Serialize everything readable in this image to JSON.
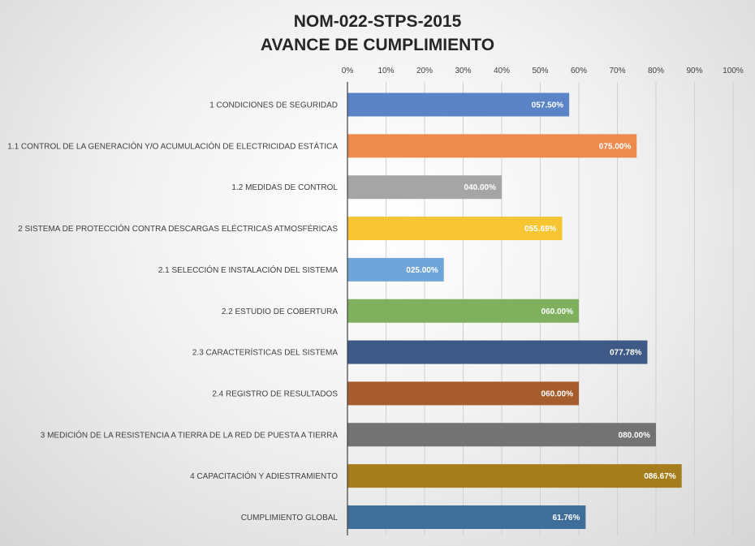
{
  "chart_data": {
    "type": "bar",
    "orientation": "horizontal",
    "title_lines": [
      "NOM-022-STPS-2015",
      "AVANCE DE CUMPLIMIENTO"
    ],
    "xlim": [
      0,
      100
    ],
    "x_ticks": [
      "0%",
      "10%",
      "20%",
      "30%",
      "40%",
      "50%",
      "60%",
      "70%",
      "80%",
      "90%",
      "100%"
    ],
    "x_axis_position": "top",
    "grid": true,
    "categories": [
      "1  CONDICIONES DE SEGURIDAD",
      "1.1 CONTROL DE LA GENERACIÓN Y/O ACUMULACIÓN DE ELECTRICIDAD ESTÁTICA",
      "1.2 MEDIDAS DE CONTROL",
      "2  SISTEMA DE PROTECCIÓN CONTRA DESCARGAS ELÉCTRICAS ATMOSFÉRICAS",
      "2.1 SELECCIÓN E INSTALACIÓN DEL SISTEMA",
      "2.2 ESTUDIO DE COBERTURA",
      "2.3 CARACTERÍSTICAS DEL SISTEMA",
      "2.4 REGISTRO DE RESULTADOS",
      "3  MEDICIÓN DE LA RESISTENCIA A TIERRA DE LA RED DE PUESTA A TIERRA",
      "4  CAPACITACIÓN Y ADIESTRAMIENTO",
      "CUMPLIMIENTO GLOBAL"
    ],
    "values": [
      57.5,
      75.0,
      40.0,
      55.69,
      25.0,
      60.0,
      77.78,
      60.0,
      80.0,
      86.67,
      61.76
    ],
    "value_labels": [
      "057.50%",
      "075.00%",
      "040.00%",
      "055.69%",
      "025.00%",
      "060.00%",
      "077.78%",
      "060.00%",
      "080.00%",
      "086.67%",
      "61.76%"
    ],
    "colors": [
      "#5b84c6",
      "#ed8b4f",
      "#a5a5a5",
      "#f7c531",
      "#6fa5d8",
      "#7fb05e",
      "#3f5986",
      "#a65c2d",
      "#737373",
      "#a67d1c",
      "#3f6e9a"
    ]
  }
}
